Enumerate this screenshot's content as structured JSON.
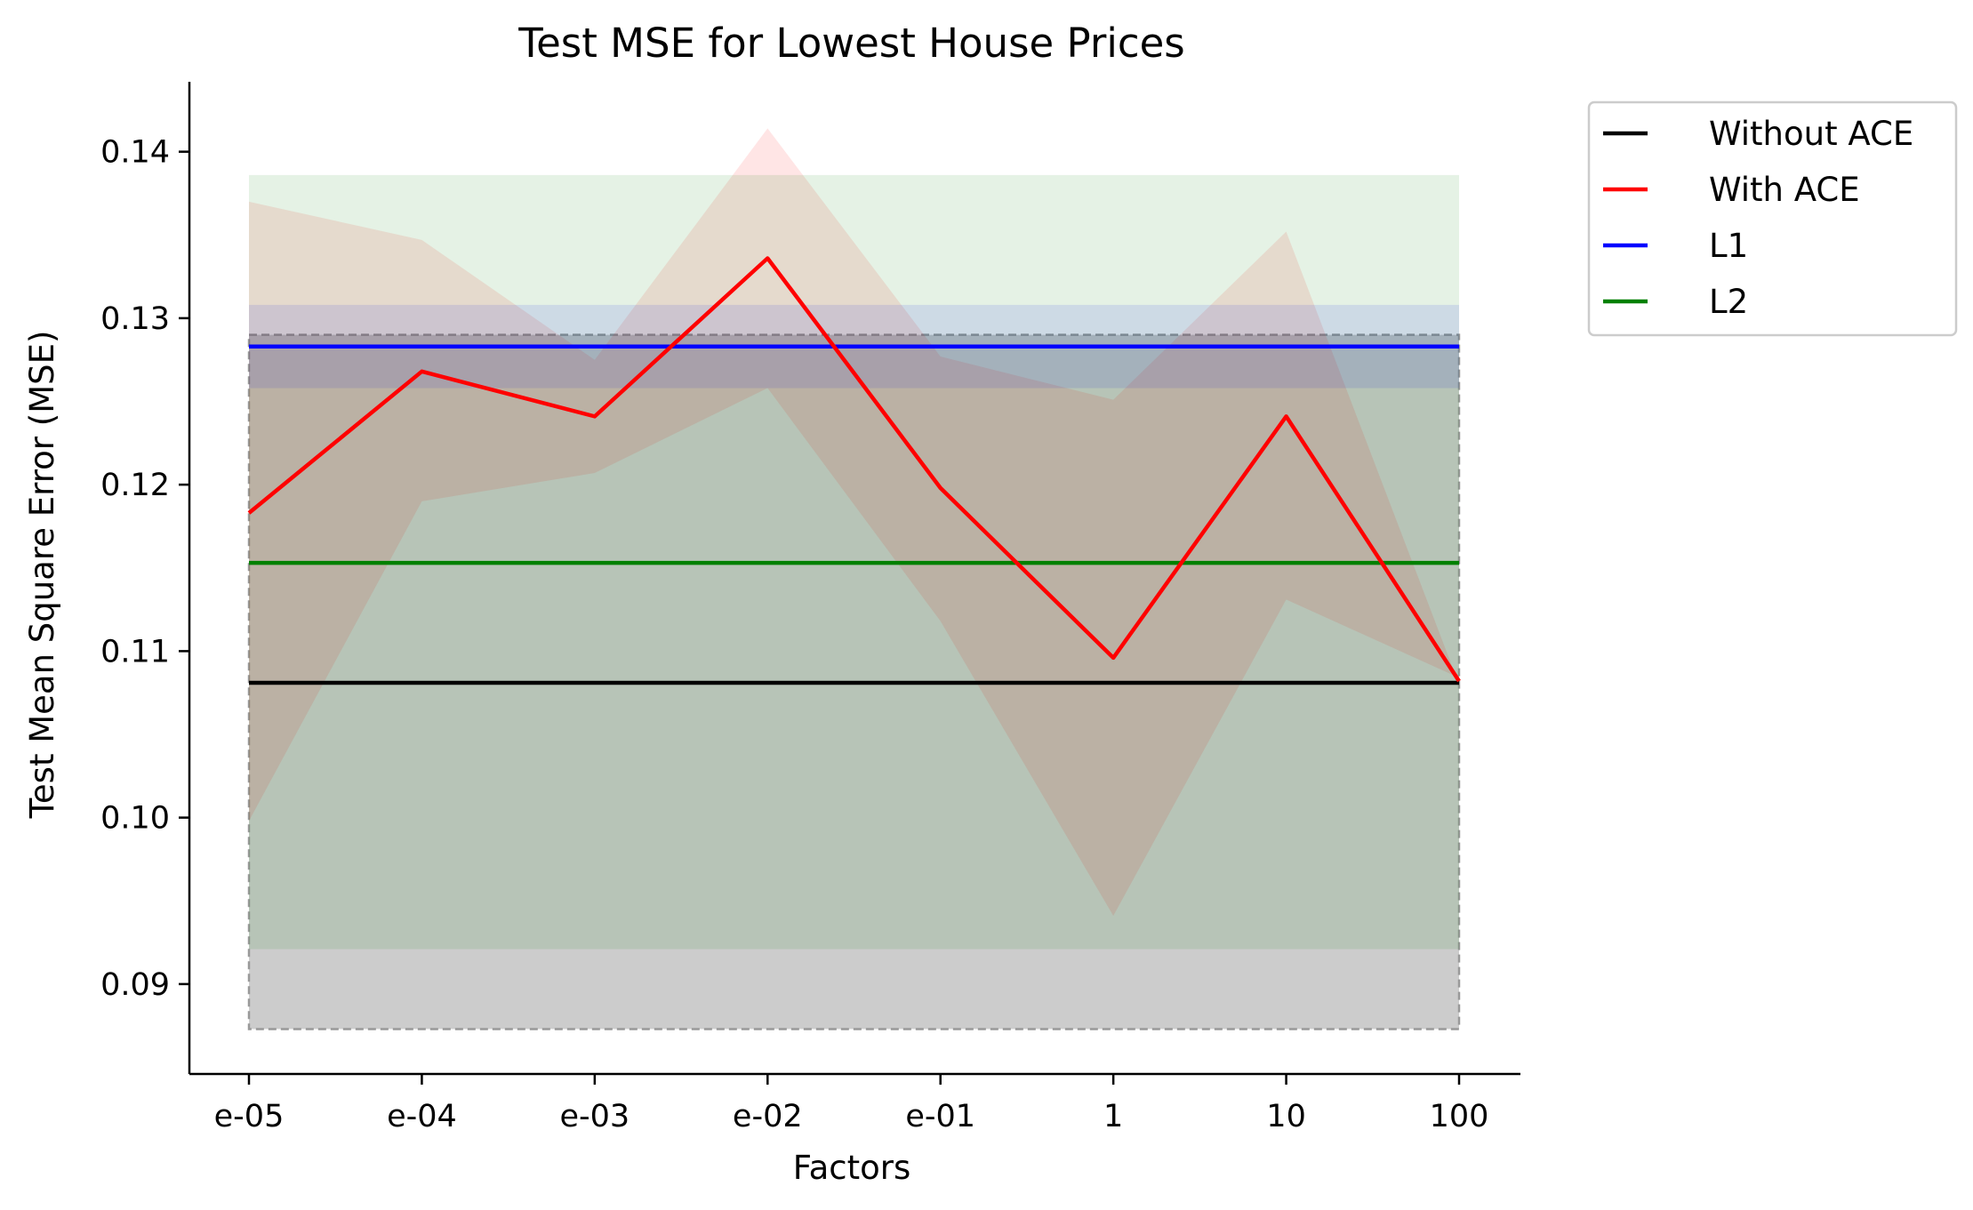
{
  "chart_data": {
    "type": "line",
    "title": "Test MSE for Lowest House Prices",
    "xlabel": "Factors",
    "ylabel": "Test Mean Square Error (MSE)",
    "categories": [
      "e-05",
      "e-04",
      "e-03",
      "e-02",
      "e-01",
      "1",
      "10",
      "100"
    ],
    "ylim": [
      0.0846,
      0.1442
    ],
    "yticks": [
      0.09,
      0.1,
      0.11,
      0.12,
      0.13,
      0.14
    ],
    "ytick_labels": [
      "0.09",
      "0.10",
      "0.11",
      "0.12",
      "0.13",
      "0.14"
    ],
    "grid": false,
    "legend_position": "outside-top-right",
    "series": [
      {
        "name": "Without ACE",
        "color": "#000000",
        "values": [
          0.1081,
          0.1081,
          0.1081,
          0.1081,
          0.1081,
          0.1081,
          0.1081,
          0.1081
        ],
        "band": [
          0.0873,
          0.129
        ],
        "band_color": "#999999",
        "band_dashed": true
      },
      {
        "name": "With ACE",
        "color": "#ff0000",
        "values": [
          0.1183,
          0.1268,
          0.1241,
          0.1336,
          0.1198,
          0.1096,
          0.1241,
          0.1082
        ],
        "band_lower": [
          0.0998,
          0.119,
          0.1207,
          0.1258,
          0.1118,
          0.0941,
          0.1131,
          0.1084
        ],
        "band_upper": [
          0.137,
          0.1347,
          0.1275,
          0.1414,
          0.1277,
          0.1251,
          0.1352,
          0.108
        ],
        "band_color": "#ff0000"
      },
      {
        "name": "L1",
        "color": "#0000ff",
        "values": [
          0.1283,
          0.1283,
          0.1283,
          0.1283,
          0.1283,
          0.1283,
          0.1283,
          0.1283
        ],
        "band": [
          0.1258,
          0.1308
        ],
        "band_color": "#0000ff"
      },
      {
        "name": "L2",
        "color": "#008000",
        "values": [
          0.1153,
          0.1153,
          0.1153,
          0.1153,
          0.1153,
          0.1153,
          0.1153,
          0.1153
        ],
        "band": [
          0.0921,
          0.1386
        ],
        "band_color": "#008000"
      }
    ]
  }
}
